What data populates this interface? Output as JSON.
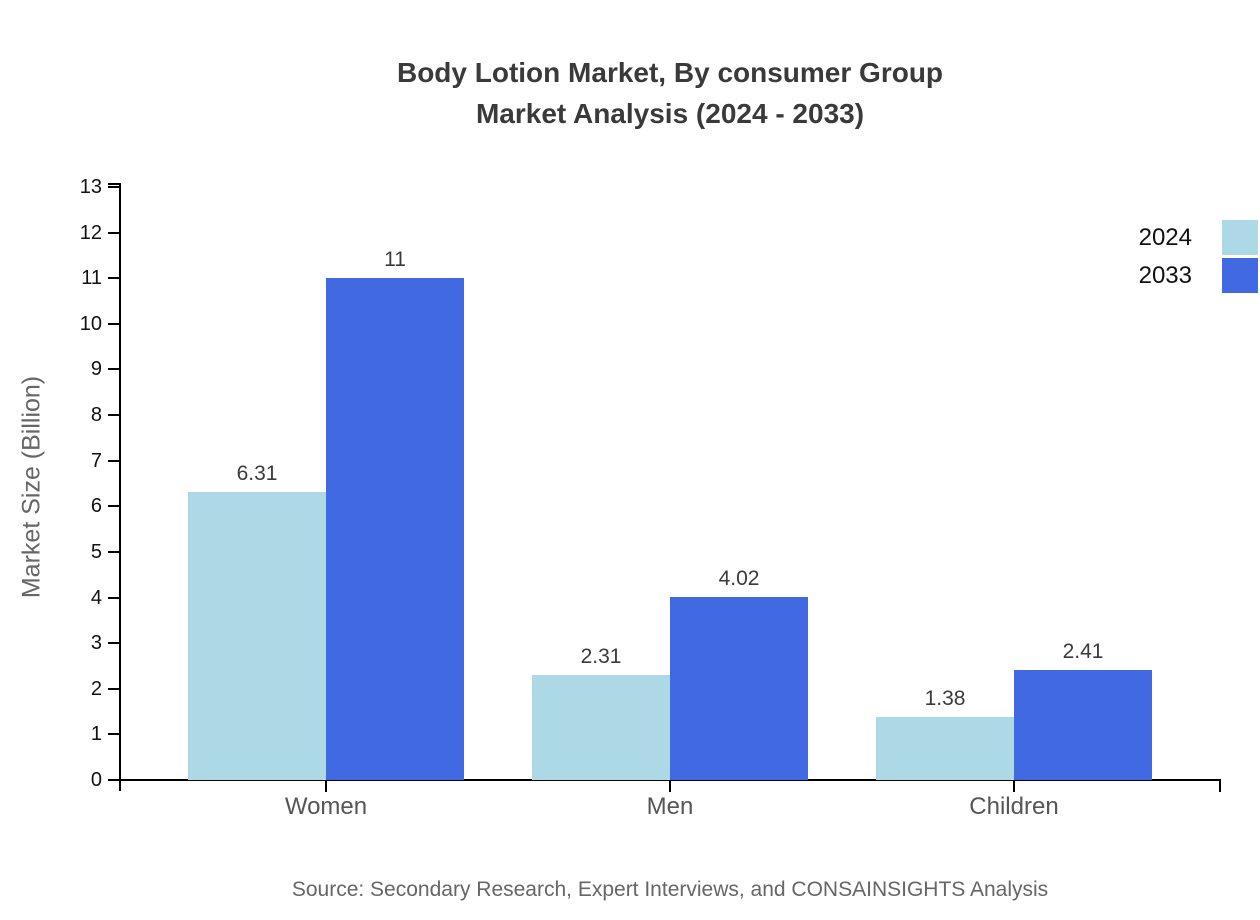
{
  "chart_data": {
    "type": "bar",
    "title_lines": [
      "Body Lotion Market, By consumer Group",
      "Market Analysis (2024 - 2033)"
    ],
    "categories": [
      "Women",
      "Men",
      "Children"
    ],
    "series": [
      {
        "name": "2024",
        "color": "#add8e6",
        "values": [
          6.31,
          2.31,
          1.38
        ]
      },
      {
        "name": "2033",
        "color": "#4169e1",
        "values": [
          11,
          4.02,
          2.41
        ]
      }
    ],
    "value_labels": [
      [
        "6.31",
        "2.31",
        "1.38"
      ],
      [
        "11",
        "4.02",
        "2.41"
      ]
    ],
    "ylabel": "Market Size (Billion)",
    "xlabel": "",
    "ylim": [
      0,
      13
    ],
    "ytick_step": 1,
    "grid": false,
    "legend_position": "top-right",
    "axis_color": "#000000",
    "text_colors": {
      "title": "#3a3a3a",
      "tick_labels": "#111111",
      "category_labels": "#555555",
      "value_labels": "#3a3a3a",
      "axis_title": "#666666",
      "source": "#666666"
    },
    "source_note": "Source: Secondary Research, Expert Interviews, and CONSAINSIGHTS Analysis"
  }
}
